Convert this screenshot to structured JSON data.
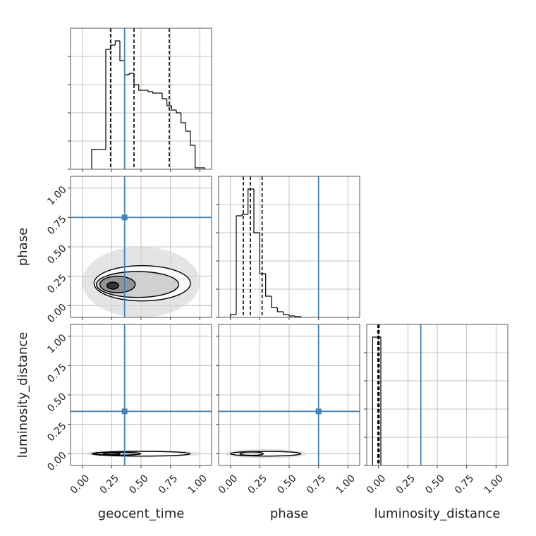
{
  "chart_data": {
    "type": "corner",
    "truth_color": "#4682b4",
    "grid": true,
    "xlim": [
      -0.1,
      1.1
    ],
    "ylim": [
      -0.1,
      1.1
    ],
    "ticks": [
      {
        "value": 0,
        "label": "0.00"
      },
      {
        "value": 0.25,
        "label": "0.25"
      },
      {
        "value": 0.5,
        "label": "0.50"
      },
      {
        "value": 0.75,
        "label": "0.75"
      },
      {
        "value": 1,
        "label": "1.00"
      }
    ],
    "hist_ylim": [
      0,
      1
    ],
    "hist_yticks": [
      0,
      0.2,
      0.4,
      0.6,
      0.8
    ],
    "parameters": [
      {
        "name": "geocent_time",
        "truth": 0.36,
        "quantiles": [
          0.24,
          0.44,
          0.74
        ],
        "hist": {
          "bins": [
            0.08,
            0.12,
            0.16,
            0.2,
            0.24,
            0.28,
            0.32,
            0.36,
            0.4,
            0.44,
            0.48,
            0.52,
            0.56,
            0.6,
            0.64,
            0.68,
            0.72,
            0.76,
            0.8,
            0.84,
            0.88,
            0.92,
            0.96,
            1.0,
            1.04
          ],
          "values": [
            0.14,
            0.14,
            0.14,
            0.85,
            0.88,
            0.91,
            0.77,
            0.67,
            0.68,
            0.6,
            0.56,
            0.56,
            0.55,
            0.54,
            0.54,
            0.5,
            0.45,
            0.42,
            0.4,
            0.33,
            0.27,
            0.17,
            0.01,
            0.01
          ]
        },
        "joint": []
      },
      {
        "name": "phase",
        "truth": 0.75,
        "quantiles": [
          0.11,
          0.17,
          0.27
        ],
        "hist": {
          "bins": [
            0,
            0.05,
            0.1,
            0.15,
            0.2,
            0.25,
            0.3,
            0.35,
            0.4,
            0.45,
            0.5,
            0.55,
            0.6
          ],
          "values": [
            0.02,
            0.72,
            0.73,
            0.91,
            0.6,
            0.31,
            0.15,
            0.07,
            0.04,
            0.02,
            0.01,
            0.005
          ]
        },
        "joint": [
          {
            "contours": [
              {
                "x": 0.5,
                "y": 0.2,
                "rx": 0.5,
                "ry": 0.3
              },
              {
                "x": 0.51,
                "y": 0.19,
                "rx": 0.41,
                "ry": 0.15
              },
              {
                "x": 0.47,
                "y": 0.18,
                "rx": 0.35,
                "ry": 0.11
              },
              {
                "x": 0.3,
                "y": 0.18,
                "rx": 0.15,
                "ry": 0.07
              },
              {
                "x": 0.26,
                "y": 0.17,
                "rx": 0.05,
                "ry": 0.03
              }
            ]
          }
        ]
      },
      {
        "name": "luminosity_distance",
        "truth": 0.36,
        "quantiles": [
          -0.005,
          0.0,
          0.005
        ],
        "hist": {
          "bins": [
            -0.05,
            0.02
          ],
          "values": [
            0.91
          ]
        },
        "joint": [
          {
            "contours": [
              {
                "x": 0.52,
                "y": 0.0,
                "rx": 0.5,
                "ry": 0.03
              },
              {
                "x": 0.5,
                "y": 0.0,
                "rx": 0.42,
                "ry": 0.02
              },
              {
                "x": 0.3,
                "y": 0.0,
                "rx": 0.2,
                "ry": 0.012
              },
              {
                "x": 0.25,
                "y": 0.0,
                "rx": 0.07,
                "ry": 0.008
              }
            ]
          },
          {
            "contours": [
              {
                "x": 0.3,
                "y": 0.0,
                "rx": 0.35,
                "ry": 0.04
              },
              {
                "x": 0.3,
                "y": 0.0,
                "rx": 0.3,
                "ry": 0.02
              },
              {
                "x": 0.18,
                "y": 0.0,
                "rx": 0.1,
                "ry": 0.015
              }
            ]
          }
        ]
      }
    ]
  }
}
